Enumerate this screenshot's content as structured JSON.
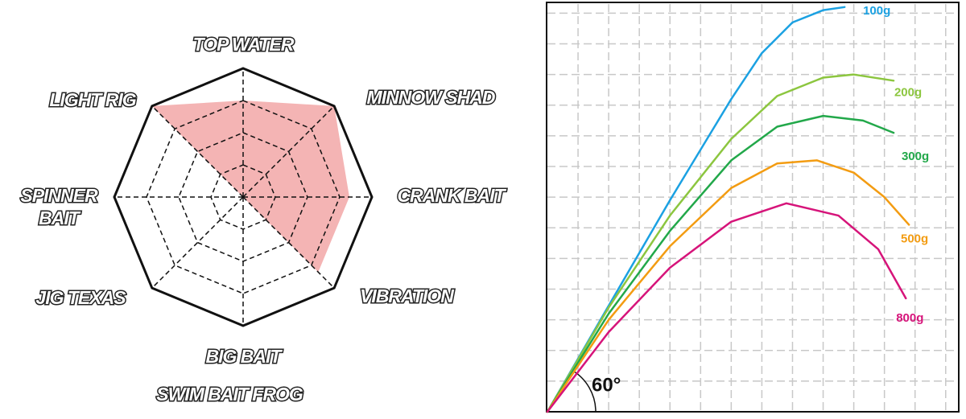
{
  "chart_data": [
    {
      "type": "radar",
      "categories": [
        "TOP WATER",
        "MINNOW SHAD",
        "CRANK BAIT",
        "VIBRATION",
        [
          "BIG BAIT",
          "SWIM BAIT FROG"
        ],
        "JIG  TEXAS",
        [
          "SPINNER",
          "BAIT"
        ],
        "LIGHT RIG"
      ],
      "values": [
        3,
        4,
        3.3,
        3.3,
        0,
        0,
        0,
        4
      ],
      "color": "#f4b4b4",
      "rlim": [
        0,
        4
      ],
      "rticks": [
        1,
        2,
        3,
        4
      ],
      "grid": true
    },
    {
      "type": "line",
      "annotation": "60°",
      "xlim": [
        0,
        13.4
      ],
      "ylim": [
        0,
        13.3
      ],
      "grid": true,
      "grid_step": 1,
      "series": [
        {
          "name": "100g",
          "color": "#1ba1e2",
          "x": [
            0,
            2,
            4,
            6,
            7,
            8,
            9,
            9.7
          ],
          "values": [
            0,
            3.46,
            6.9,
            10.2,
            11.7,
            12.7,
            13.1,
            13.2
          ]
        },
        {
          "name": "200g",
          "color": "#8cc63f",
          "x": [
            0,
            2,
            4,
            6,
            7.5,
            9,
            10,
            11.3
          ],
          "values": [
            0,
            3.4,
            6.4,
            8.9,
            10.3,
            10.9,
            11.0,
            10.8
          ]
        },
        {
          "name": "300g",
          "color": "#22a84a",
          "x": [
            0,
            2,
            4,
            6,
            7.5,
            9,
            10.3,
            11.3
          ],
          "values": [
            0,
            3.2,
            5.9,
            8.2,
            9.3,
            9.65,
            9.5,
            9.1
          ]
        },
        {
          "name": "500g",
          "color": "#f39c12",
          "x": [
            0,
            2,
            4,
            6,
            7.5,
            8.8,
            10,
            11,
            11.8
          ],
          "values": [
            0,
            3.0,
            5.4,
            7.3,
            8.1,
            8.2,
            7.8,
            7.0,
            6.1
          ]
        },
        {
          "name": "800g",
          "color": "#d6147a",
          "x": [
            0,
            2,
            4,
            6,
            7.8,
            9.5,
            10.8,
            11.7
          ],
          "values": [
            0,
            2.6,
            4.7,
            6.2,
            6.8,
            6.4,
            5.3,
            3.7
          ]
        }
      ]
    }
  ]
}
